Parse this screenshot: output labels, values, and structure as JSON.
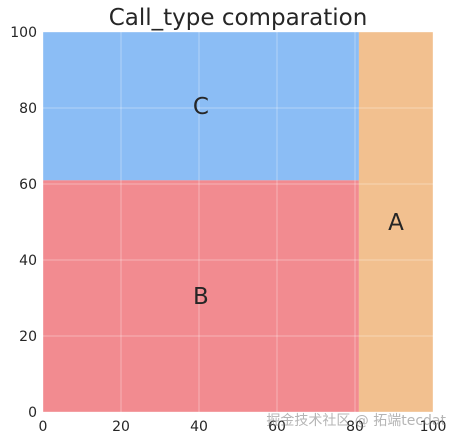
{
  "chart_data": {
    "type": "treemap",
    "title": "Call_type comparation",
    "xlim": [
      0,
      100
    ],
    "ylim": [
      0,
      100
    ],
    "x_ticks": [
      "0",
      "20",
      "40",
      "60",
      "80",
      "100"
    ],
    "y_ticks": [
      "0",
      "20",
      "40",
      "60",
      "80",
      "100"
    ],
    "grid": true,
    "rectangles": [
      {
        "label": "B",
        "x0": 0,
        "x1": 81,
        "y0": 0,
        "y1": 61,
        "color": "#f28b90"
      },
      {
        "label": "C",
        "x0": 0,
        "x1": 81,
        "y0": 61,
        "y1": 100,
        "color": "#8bbdf5"
      },
      {
        "label": "A",
        "x0": 81,
        "x1": 100,
        "y0": 0,
        "y1": 100,
        "color": "#f2c08f"
      }
    ]
  },
  "watermark": "掘金技术社区 @ 拓端tecdat"
}
